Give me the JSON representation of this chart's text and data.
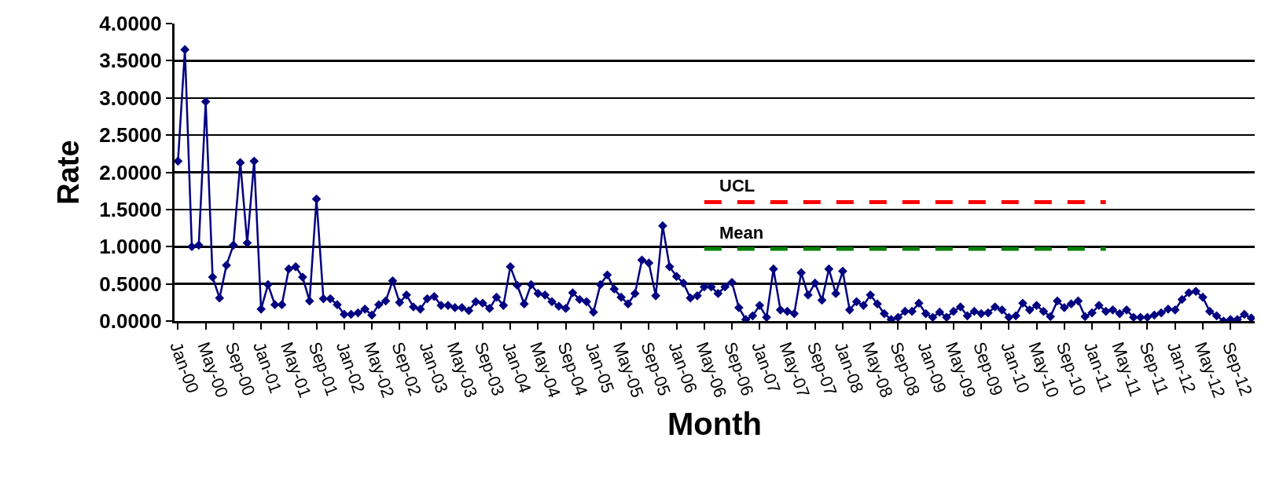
{
  "chart_data": {
    "type": "line",
    "xlabel": "Month",
    "ylabel": "Rate",
    "categories": [
      "Jan-00",
      null,
      null,
      null,
      "May-00",
      null,
      null,
      null,
      "Sep-00",
      null,
      null,
      null,
      "Jan-01",
      null,
      null,
      null,
      "May-01",
      null,
      null,
      null,
      "Sep-01",
      null,
      null,
      null,
      "Jan-02",
      null,
      null,
      null,
      "May-02",
      null,
      null,
      null,
      "Sep-02",
      null,
      null,
      null,
      "Jan-03",
      null,
      null,
      null,
      "May-03",
      null,
      null,
      null,
      "Sep-03",
      null,
      null,
      null,
      "Jan-04",
      null,
      null,
      null,
      "May-04",
      null,
      null,
      null,
      "Sep-04",
      null,
      null,
      null,
      "Jan-05",
      null,
      null,
      null,
      "May-05",
      null,
      null,
      null,
      "Sep-05",
      null,
      null,
      null,
      "Jan-06",
      null,
      null,
      null,
      "May-06",
      null,
      null,
      null,
      "Sep-06",
      null,
      null,
      null,
      "Jan-07",
      null,
      null,
      null,
      "May-07",
      null,
      null,
      null,
      "Sep-07",
      null,
      null,
      null,
      "Jan-08",
      null,
      null,
      null,
      "May-08",
      null,
      null,
      null,
      "Sep-08",
      null,
      null,
      null,
      "Jan-09",
      null,
      null,
      null,
      "May-09",
      null,
      null,
      null,
      "Sep-09",
      null,
      null,
      null,
      "Jan-10",
      null,
      null,
      null,
      "May-10",
      null,
      null,
      null,
      "Sep-10",
      null,
      null,
      null,
      "Jan-11",
      null,
      null,
      null,
      "May-11",
      null,
      null,
      null,
      "Sep-11",
      null,
      null,
      null,
      "Jan-12",
      null,
      null,
      null,
      "May-12",
      null,
      null,
      null,
      "Sep-12",
      null,
      null,
      null
    ],
    "series": [
      {
        "color": "#000080",
        "marker": "diamond",
        "values": [
          2.15,
          3.65,
          1.0,
          1.02,
          2.95,
          0.59,
          0.31,
          0.75,
          1.02,
          2.13,
          1.05,
          2.15,
          0.16,
          0.49,
          0.22,
          0.22,
          0.7,
          0.73,
          0.59,
          0.27,
          1.64,
          0.3,
          0.3,
          0.22,
          0.09,
          0.09,
          0.11,
          0.16,
          0.08,
          0.22,
          0.27,
          0.54,
          0.25,
          0.35,
          0.19,
          0.16,
          0.3,
          0.33,
          0.21,
          0.21,
          0.18,
          0.18,
          0.14,
          0.26,
          0.24,
          0.17,
          0.32,
          0.21,
          0.73,
          0.48,
          0.23,
          0.49,
          0.37,
          0.35,
          0.26,
          0.2,
          0.17,
          0.38,
          0.29,
          0.26,
          0.12,
          0.49,
          0.62,
          0.43,
          0.32,
          0.23,
          0.37,
          0.82,
          0.78,
          0.34,
          1.28,
          0.73,
          0.6,
          0.51,
          0.31,
          0.34,
          0.46,
          0.46,
          0.37,
          0.46,
          0.52,
          0.18,
          0.02,
          0.07,
          0.21,
          0.05,
          0.7,
          0.15,
          0.13,
          0.1,
          0.65,
          0.35,
          0.51,
          0.28,
          0.7,
          0.37,
          0.67,
          0.15,
          0.26,
          0.21,
          0.35,
          0.23,
          0.1,
          0.02,
          0.05,
          0.13,
          0.13,
          0.24,
          0.1,
          0.05,
          0.12,
          0.05,
          0.13,
          0.19,
          0.07,
          0.13,
          0.1,
          0.11,
          0.19,
          0.15,
          0.05,
          0.07,
          0.24,
          0.15,
          0.21,
          0.13,
          0.06,
          0.27,
          0.18,
          0.23,
          0.27,
          0.06,
          0.11,
          0.21,
          0.13,
          0.15,
          0.1,
          0.15,
          0.05,
          0.05,
          0.05,
          0.08,
          0.11,
          0.16,
          0.15,
          0.29,
          0.38,
          0.4,
          0.32,
          0.13,
          0.07,
          0.0,
          0.02,
          0.02,
          0.09,
          0.04
        ]
      },
      {
        "name": "UCL",
        "color": "#ff0000",
        "marker": "none",
        "line_style": "dashed",
        "values": [
          null,
          null,
          null,
          null,
          null,
          null,
          null,
          null,
          null,
          null,
          null,
          null,
          null,
          null,
          null,
          null,
          null,
          null,
          null,
          null,
          null,
          null,
          null,
          null,
          null,
          null,
          null,
          null,
          null,
          null,
          null,
          null,
          null,
          null,
          null,
          null,
          null,
          null,
          null,
          null,
          null,
          null,
          null,
          null,
          null,
          null,
          null,
          null,
          null,
          null,
          null,
          null,
          null,
          null,
          null,
          null,
          null,
          null,
          null,
          null,
          null,
          null,
          null,
          null,
          null,
          null,
          null,
          null,
          null,
          null,
          null,
          null,
          null,
          null,
          null,
          null,
          1.6,
          1.6,
          1.6,
          1.6,
          1.6,
          1.6,
          1.6,
          1.6,
          1.6,
          1.6,
          1.6,
          1.6,
          1.6,
          1.6,
          1.6,
          1.6,
          1.6,
          1.6,
          1.6,
          1.6,
          1.6,
          1.6,
          1.6,
          1.6,
          1.6,
          1.6,
          1.6,
          1.6,
          1.6,
          1.6,
          1.6,
          1.6,
          1.6,
          1.6,
          1.6,
          1.6,
          1.6,
          1.6,
          1.6,
          1.6,
          1.6,
          1.6,
          1.6,
          1.6,
          1.6,
          1.6,
          1.6,
          1.6,
          1.6,
          1.6,
          1.6,
          1.6,
          1.6,
          1.6,
          1.6,
          1.6,
          1.6,
          1.6,
          1.6,
          null,
          null,
          null,
          null,
          null,
          null,
          null,
          null,
          null,
          null,
          null,
          null,
          null,
          null,
          null,
          null,
          null,
          null,
          null,
          null,
          null
        ]
      },
      {
        "name": "Mean",
        "color": "#008000",
        "marker": "none",
        "line_style": "dashed",
        "values": [
          null,
          null,
          null,
          null,
          null,
          null,
          null,
          null,
          null,
          null,
          null,
          null,
          null,
          null,
          null,
          null,
          null,
          null,
          null,
          null,
          null,
          null,
          null,
          null,
          null,
          null,
          null,
          null,
          null,
          null,
          null,
          null,
          null,
          null,
          null,
          null,
          null,
          null,
          null,
          null,
          null,
          null,
          null,
          null,
          null,
          null,
          null,
          null,
          null,
          null,
          null,
          null,
          null,
          null,
          null,
          null,
          null,
          null,
          null,
          null,
          null,
          null,
          null,
          null,
          null,
          null,
          null,
          null,
          null,
          null,
          null,
          null,
          null,
          null,
          null,
          null,
          0.97,
          0.97,
          0.97,
          0.97,
          0.97,
          0.97,
          0.97,
          0.97,
          0.97,
          0.97,
          0.97,
          0.97,
          0.97,
          0.97,
          0.97,
          0.97,
          0.97,
          0.97,
          0.97,
          0.97,
          0.97,
          0.97,
          0.97,
          0.97,
          0.97,
          0.97,
          0.97,
          0.97,
          0.97,
          0.97,
          0.97,
          0.97,
          0.97,
          0.97,
          0.97,
          0.97,
          0.97,
          0.97,
          0.97,
          0.97,
          0.97,
          0.97,
          0.97,
          0.97,
          0.97,
          0.97,
          0.97,
          0.97,
          0.97,
          0.97,
          0.97,
          0.97,
          0.97,
          0.97,
          0.97,
          0.97,
          0.97,
          0.97,
          0.97,
          null,
          null,
          null,
          null,
          null,
          null,
          null,
          null,
          null,
          null,
          null,
          null,
          null,
          null,
          null,
          null,
          null,
          null,
          null,
          null,
          null
        ]
      }
    ],
    "ylim": [
      0,
      4
    ],
    "yticks": [
      {
        "value": 0,
        "label": "0.0000"
      },
      {
        "value": 0.5,
        "label": "0.5000"
      },
      {
        "value": 1,
        "label": "1.0000"
      },
      {
        "value": 1.5,
        "label": "1.5000"
      },
      {
        "value": 2,
        "label": "2.0000"
      },
      {
        "value": 2.5,
        "label": "2.5000"
      },
      {
        "value": 3,
        "label": "3.0000"
      },
      {
        "value": 3.5,
        "label": "3.5000"
      },
      {
        "value": 4,
        "label": "4.0000"
      }
    ],
    "grid": "y",
    "legend": false
  }
}
